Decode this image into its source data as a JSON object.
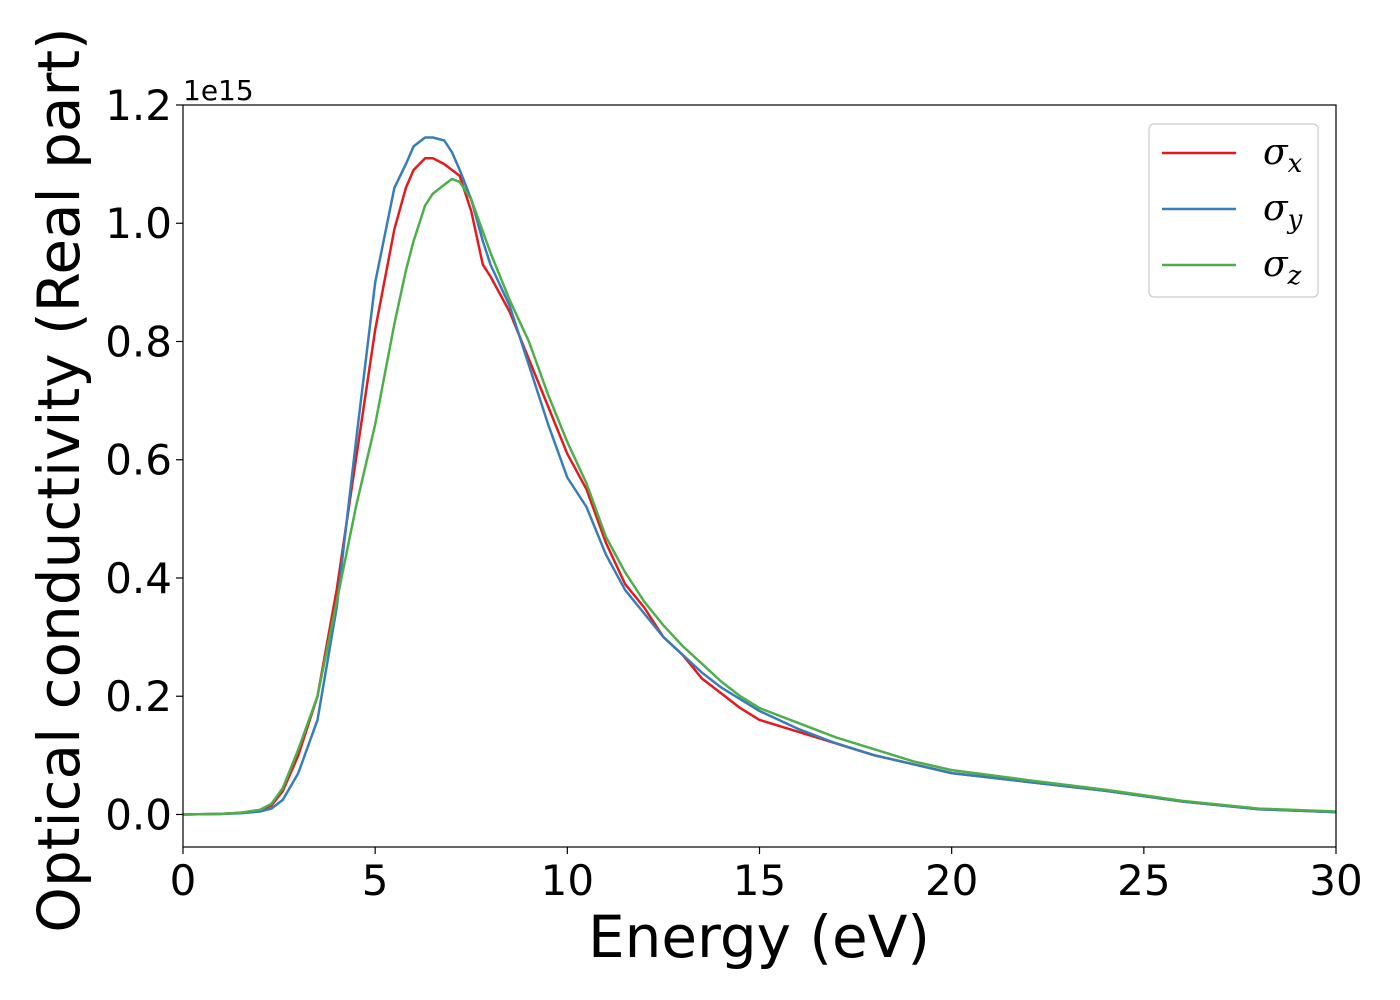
{
  "chart_data": {
    "type": "line",
    "xlabel": "Energy (eV)",
    "ylabel": "Optical conductivity (Real part)",
    "y_offset_label": "1e15",
    "xlim": [
      0,
      30
    ],
    "ylim": [
      -0.055,
      1.2
    ],
    "xticks": [
      0,
      5,
      10,
      15,
      20,
      25,
      30
    ],
    "yticks": [
      0.0,
      0.2,
      0.4,
      0.6,
      0.8,
      1.0,
      1.2
    ],
    "xtick_labels": [
      "0",
      "5",
      "10",
      "15",
      "20",
      "25",
      "30"
    ],
    "ytick_labels": [
      "0.0",
      "0.2",
      "0.4",
      "0.6",
      "0.8",
      "1.0",
      "1.2"
    ],
    "grid": false,
    "legend_position": "top-right",
    "series": [
      {
        "name": "σx",
        "base": "σ",
        "sub": "x",
        "color": "#e41a1c",
        "x": [
          0,
          1,
          1.5,
          2,
          2.3,
          2.6,
          3,
          3.5,
          4,
          4.5,
          5,
          5.5,
          5.8,
          6,
          6.3,
          6.5,
          6.8,
          7.2,
          7.5,
          7.8,
          8,
          8.5,
          9,
          9.5,
          10,
          10.5,
          11,
          11.5,
          12,
          12.5,
          13,
          13.5,
          14,
          14.5,
          15,
          16,
          17,
          18,
          19,
          20,
          22,
          24,
          26,
          28,
          30
        ],
        "y": [
          0.0,
          0.001,
          0.003,
          0.007,
          0.015,
          0.04,
          0.1,
          0.2,
          0.38,
          0.6,
          0.82,
          0.99,
          1.06,
          1.09,
          1.11,
          1.11,
          1.1,
          1.08,
          1.02,
          0.93,
          0.91,
          0.85,
          0.77,
          0.69,
          0.61,
          0.55,
          0.46,
          0.39,
          0.35,
          0.3,
          0.27,
          0.23,
          0.205,
          0.18,
          0.16,
          0.14,
          0.12,
          0.1,
          0.085,
          0.07,
          0.055,
          0.04,
          0.022,
          0.009,
          0.004
        ]
      },
      {
        "name": "σy",
        "base": "σ",
        "sub": "y",
        "color": "#377eb8",
        "x": [
          0,
          1,
          1.5,
          2,
          2.3,
          2.6,
          3,
          3.5,
          4,
          4.5,
          5,
          5.5,
          5.8,
          6,
          6.3,
          6.5,
          6.8,
          7,
          7.2,
          7.5,
          7.8,
          8,
          8.5,
          9,
          9.5,
          10,
          10.5,
          11,
          11.5,
          12,
          12.5,
          13,
          13.5,
          14,
          14.5,
          15,
          16,
          17,
          18,
          19,
          20,
          22,
          24,
          26,
          28,
          30
        ],
        "y": [
          0.0,
          0.001,
          0.002,
          0.005,
          0.01,
          0.025,
          0.07,
          0.16,
          0.35,
          0.63,
          0.9,
          1.06,
          1.1,
          1.13,
          1.145,
          1.145,
          1.14,
          1.12,
          1.09,
          1.04,
          0.97,
          0.93,
          0.86,
          0.76,
          0.66,
          0.57,
          0.52,
          0.44,
          0.38,
          0.34,
          0.3,
          0.27,
          0.24,
          0.215,
          0.195,
          0.175,
          0.145,
          0.12,
          0.1,
          0.085,
          0.07,
          0.055,
          0.04,
          0.022,
          0.009,
          0.004
        ]
      },
      {
        "name": "σz",
        "base": "σ",
        "sub": "z",
        "color": "#4daf4a",
        "x": [
          0,
          1,
          1.5,
          2,
          2.3,
          2.6,
          3,
          3.5,
          4,
          4.5,
          5,
          5.5,
          5.8,
          6,
          6.3,
          6.5,
          6.8,
          7,
          7.2,
          7.5,
          8,
          8.5,
          9,
          9.5,
          10,
          10.5,
          11,
          11.5,
          12,
          12.5,
          13,
          13.5,
          14,
          14.5,
          15,
          16,
          17,
          18,
          19,
          20,
          22,
          24,
          26,
          28,
          30
        ],
        "y": [
          0.0,
          0.001,
          0.003,
          0.008,
          0.018,
          0.045,
          0.11,
          0.2,
          0.36,
          0.52,
          0.66,
          0.83,
          0.92,
          0.97,
          1.03,
          1.05,
          1.065,
          1.075,
          1.07,
          1.04,
          0.95,
          0.87,
          0.8,
          0.71,
          0.63,
          0.56,
          0.47,
          0.41,
          0.36,
          0.32,
          0.285,
          0.255,
          0.225,
          0.2,
          0.18,
          0.155,
          0.13,
          0.11,
          0.09,
          0.075,
          0.058,
          0.042,
          0.023,
          0.01,
          0.005
        ]
      }
    ]
  }
}
